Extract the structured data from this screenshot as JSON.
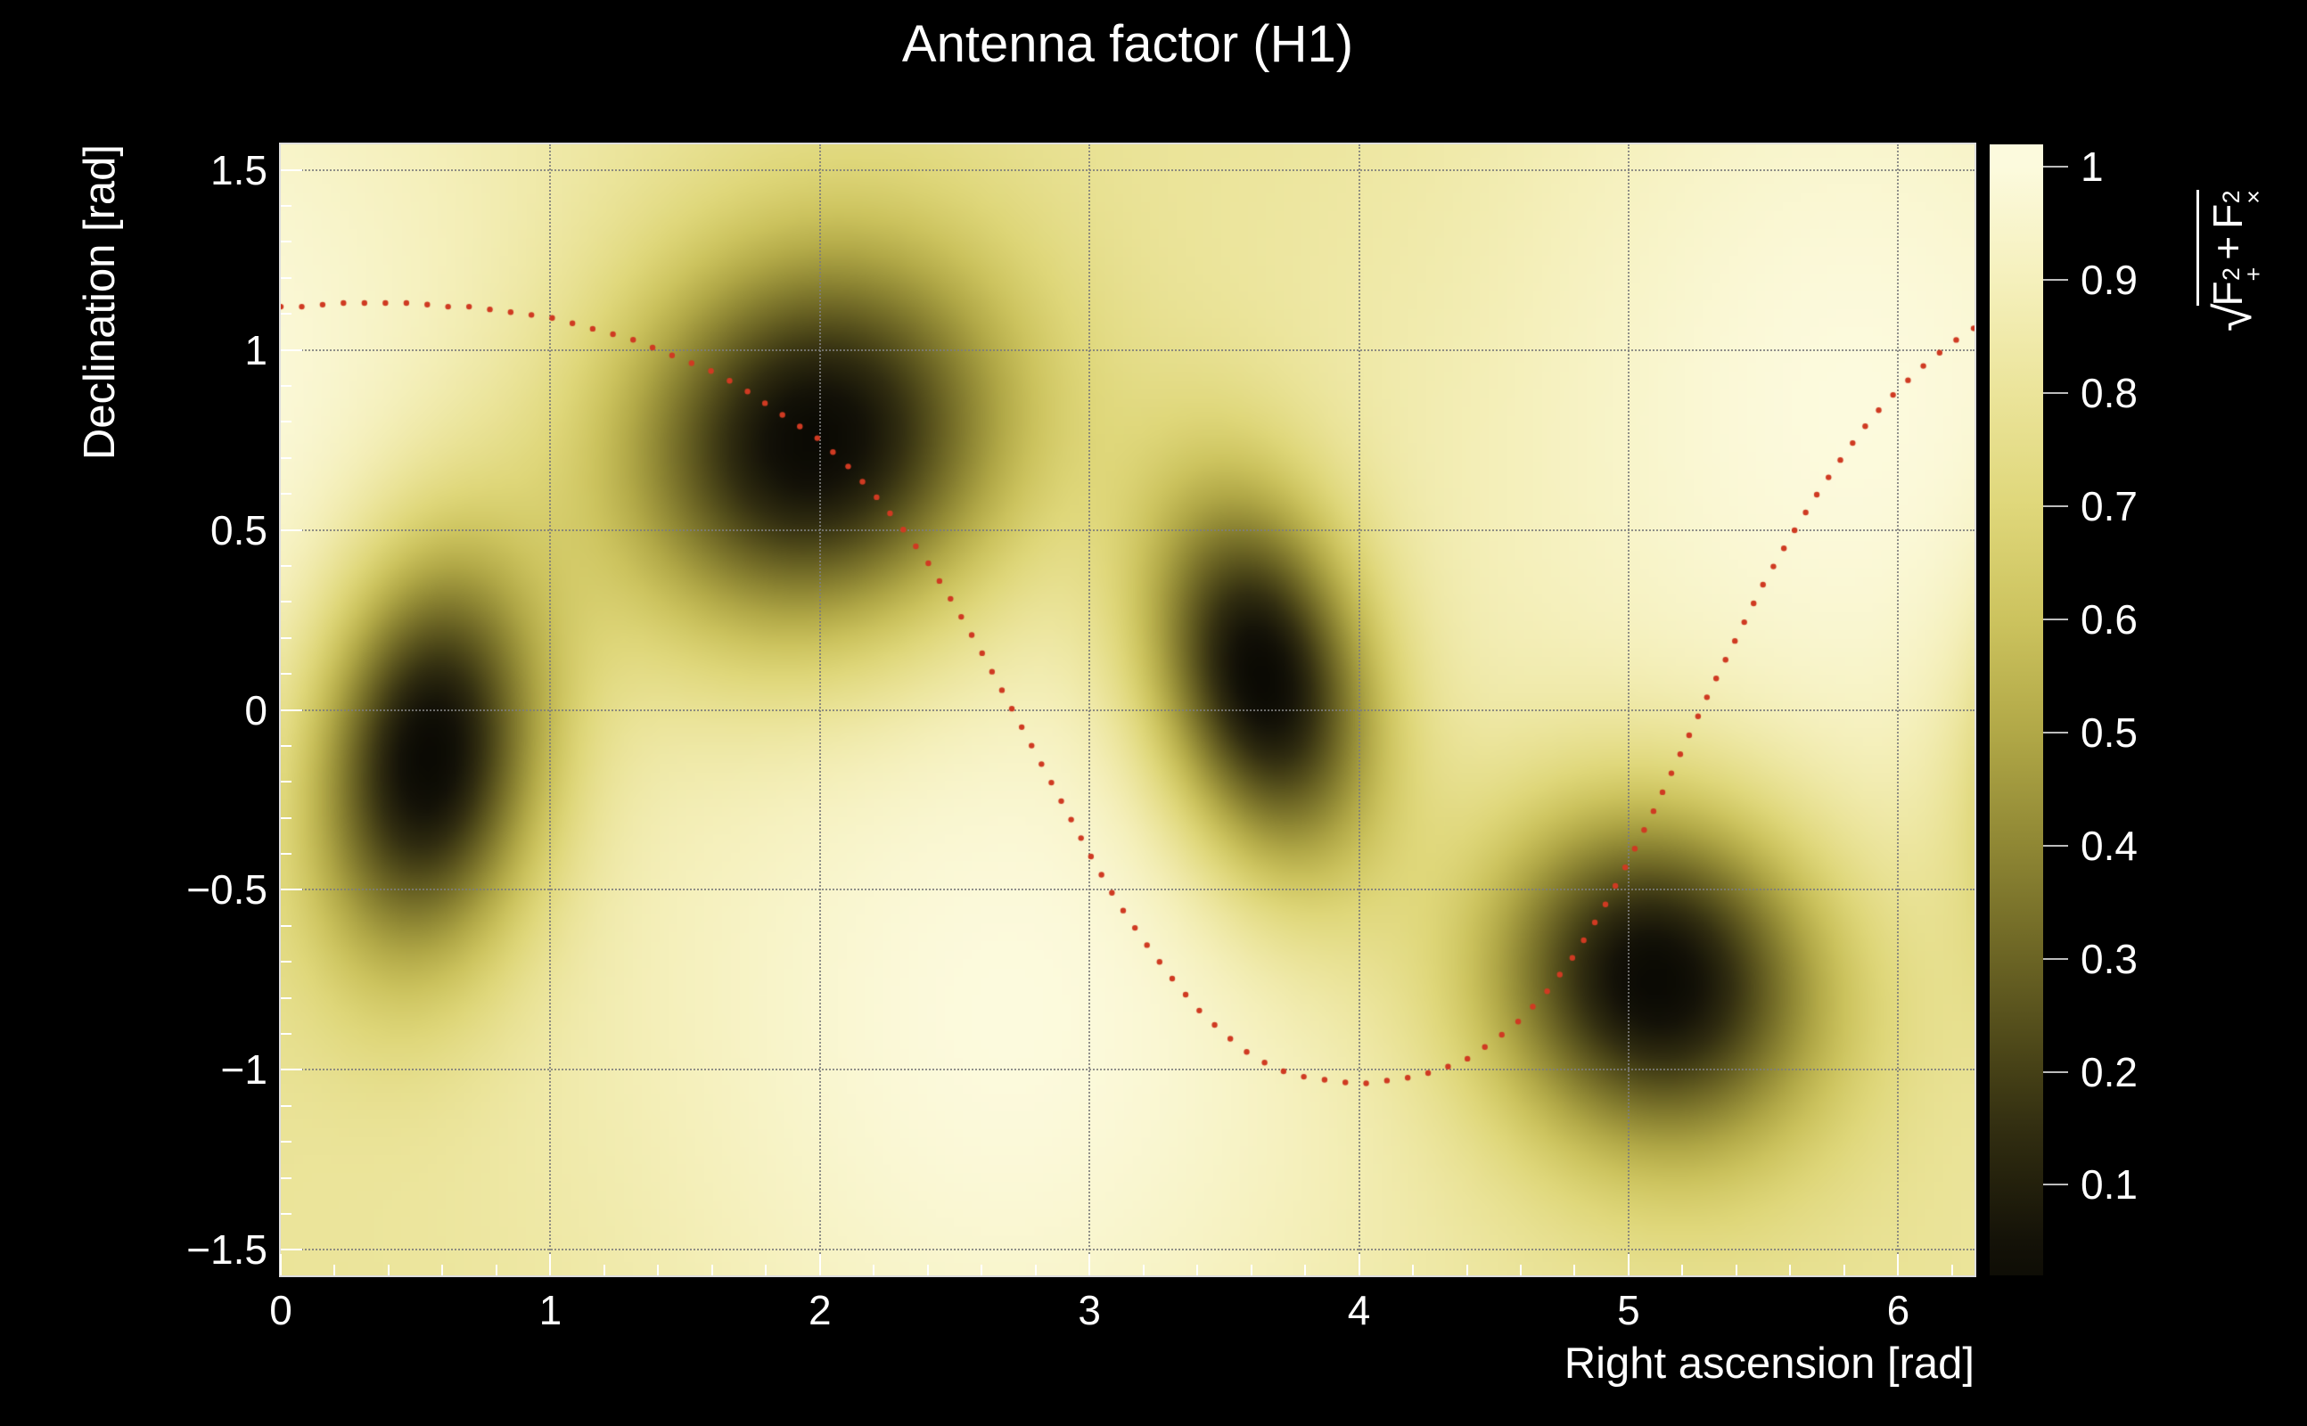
{
  "title": {
    "text": "Antenna factor (H1)",
    "color": "#ffffff"
  },
  "axes": {
    "x": {
      "title": "Right ascension [rad]",
      "range": [
        0,
        6.28319
      ],
      "minor_step": 0.2,
      "ticks": [
        {
          "v": 0,
          "label": "0"
        },
        {
          "v": 1,
          "label": "1"
        },
        {
          "v": 2,
          "label": "2"
        },
        {
          "v": 3,
          "label": "3"
        },
        {
          "v": 4,
          "label": "4"
        },
        {
          "v": 5,
          "label": "5"
        },
        {
          "v": 6,
          "label": "6"
        }
      ]
    },
    "y": {
      "title": "Declination [rad]",
      "range": [
        -1.5708,
        1.5708
      ],
      "minor_step": 0.1,
      "ticks": [
        {
          "v": -1.5,
          "label": "−1.5"
        },
        {
          "v": -1,
          "label": "−1"
        },
        {
          "v": -0.5,
          "label": "−0.5"
        },
        {
          "v": 0,
          "label": "0"
        },
        {
          "v": 0.5,
          "label": "0.5"
        },
        {
          "v": 1,
          "label": "1"
        },
        {
          "v": 1.5,
          "label": "1.5"
        }
      ]
    }
  },
  "colorbar": {
    "range": [
      0.02,
      1.02
    ],
    "ticks": [
      {
        "v": 1.0,
        "label": "1"
      },
      {
        "v": 0.9,
        "label": "0.9"
      },
      {
        "v": 0.8,
        "label": "0.8"
      },
      {
        "v": 0.7,
        "label": "0.7"
      },
      {
        "v": 0.6,
        "label": "0.6"
      },
      {
        "v": 0.5,
        "label": "0.5"
      },
      {
        "v": 0.4,
        "label": "0.4"
      },
      {
        "v": 0.3,
        "label": "0.3"
      },
      {
        "v": 0.2,
        "label": "0.2"
      },
      {
        "v": 0.1,
        "label": "0.1"
      }
    ],
    "title": {
      "radical": "√",
      "term1": "F",
      "term1_sup": "2",
      "term1_sub": "+",
      "operator": "+",
      "term2": "F",
      "term2_sup": "2",
      "term2_sub": "×"
    }
  },
  "chart_data": {
    "type": "heatmap",
    "title": "Antenna factor (H1)",
    "xlabel": "Right ascension [rad]",
    "ylabel": "Declination [rad]",
    "zlabel": "sqrt(F+^2 + Fx^2)",
    "x_range": [
      0,
      6.28319
    ],
    "y_range": [
      -1.5708,
      1.5708
    ],
    "z_range": [
      0,
      1
    ],
    "grid": true,
    "colormap_stops": [
      {
        "v": 0.0,
        "color": "#0b0a04"
      },
      {
        "v": 0.05,
        "color": "#141208"
      },
      {
        "v": 0.1,
        "color": "#23200c"
      },
      {
        "v": 0.15,
        "color": "#322e11"
      },
      {
        "v": 0.2,
        "color": "#454016"
      },
      {
        "v": 0.3,
        "color": "#6b6424"
      },
      {
        "v": 0.4,
        "color": "#8f8734"
      },
      {
        "v": 0.5,
        "color": "#b1a847"
      },
      {
        "v": 0.6,
        "color": "#ccc35e"
      },
      {
        "v": 0.7,
        "color": "#dfd77a"
      },
      {
        "v": 0.8,
        "color": "#ebe49a"
      },
      {
        "v": 0.9,
        "color": "#f5f0bc"
      },
      {
        "v": 1.0,
        "color": "#fcfadd"
      }
    ],
    "field_model": {
      "base": 0.78,
      "maxima": [
        {
          "ra": 2.7,
          "dec": -0.85,
          "sigma": 1.05,
          "amp": 0.22
        },
        {
          "ra": 5.84,
          "dec": 0.85,
          "sigma": 1.05,
          "amp": 0.22
        }
      ],
      "nulls": [
        {
          "ra": 0.55,
          "dec": -0.13,
          "sigma_ra": 0.3,
          "sigma_dec": 0.42,
          "rot_deg": -15
        },
        {
          "ra": 1.98,
          "dec": 0.75,
          "sigma_ra": 0.52,
          "sigma_dec": 0.38,
          "rot_deg": 8
        },
        {
          "ra": 3.64,
          "dec": 0.09,
          "sigma_ra": 0.28,
          "sigma_dec": 0.4,
          "rot_deg": 25
        },
        {
          "ra": 5.1,
          "dec": -0.75,
          "sigma_ra": 0.45,
          "sigma_dec": 0.34,
          "rot_deg": -8
        }
      ]
    },
    "overlay_curve": {
      "color": "#cf3a22",
      "dot_radius": 3.2,
      "dot_count": 118,
      "points": [
        [
          0.0,
          1.12
        ],
        [
          0.1,
          1.12
        ],
        [
          0.2,
          1.13
        ],
        [
          0.3,
          1.13
        ],
        [
          0.4,
          1.13
        ],
        [
          0.5,
          1.13
        ],
        [
          0.6,
          1.12
        ],
        [
          0.7,
          1.12
        ],
        [
          0.8,
          1.11
        ],
        [
          0.9,
          1.1
        ],
        [
          1.0,
          1.09
        ],
        [
          1.1,
          1.07
        ],
        [
          1.2,
          1.05
        ],
        [
          1.3,
          1.03
        ],
        [
          1.4,
          1.0
        ],
        [
          1.5,
          0.97
        ],
        [
          1.6,
          0.94
        ],
        [
          1.7,
          0.9
        ],
        [
          1.8,
          0.85
        ],
        [
          1.9,
          0.8
        ],
        [
          2.0,
          0.75
        ],
        [
          2.1,
          0.68
        ],
        [
          2.2,
          0.6
        ],
        [
          2.3,
          0.51
        ],
        [
          2.4,
          0.41
        ],
        [
          2.5,
          0.29
        ],
        [
          2.6,
          0.16
        ],
        [
          2.7,
          0.02
        ],
        [
          2.8,
          -0.12
        ],
        [
          2.9,
          -0.26
        ],
        [
          3.0,
          -0.4
        ],
        [
          3.1,
          -0.53
        ],
        [
          3.2,
          -0.64
        ],
        [
          3.3,
          -0.74
        ],
        [
          3.4,
          -0.83
        ],
        [
          3.5,
          -0.9
        ],
        [
          3.6,
          -0.96
        ],
        [
          3.7,
          -1.0
        ],
        [
          3.8,
          -1.02
        ],
        [
          3.9,
          -1.03
        ],
        [
          4.0,
          -1.04
        ],
        [
          4.1,
          -1.03
        ],
        [
          4.2,
          -1.02
        ],
        [
          4.3,
          -1.0
        ],
        [
          4.4,
          -0.97
        ],
        [
          4.5,
          -0.92
        ],
        [
          4.6,
          -0.86
        ],
        [
          4.7,
          -0.78
        ],
        [
          4.8,
          -0.68
        ],
        [
          4.9,
          -0.56
        ],
        [
          5.0,
          -0.42
        ],
        [
          5.1,
          -0.27
        ],
        [
          5.2,
          -0.11
        ],
        [
          5.3,
          0.05
        ],
        [
          5.4,
          0.2
        ],
        [
          5.5,
          0.35
        ],
        [
          5.6,
          0.48
        ],
        [
          5.7,
          0.6
        ],
        [
          5.8,
          0.71
        ],
        [
          5.9,
          0.81
        ],
        [
          6.0,
          0.89
        ],
        [
          6.1,
          0.96
        ],
        [
          6.2,
          1.02
        ],
        [
          6.28,
          1.06
        ]
      ]
    }
  }
}
